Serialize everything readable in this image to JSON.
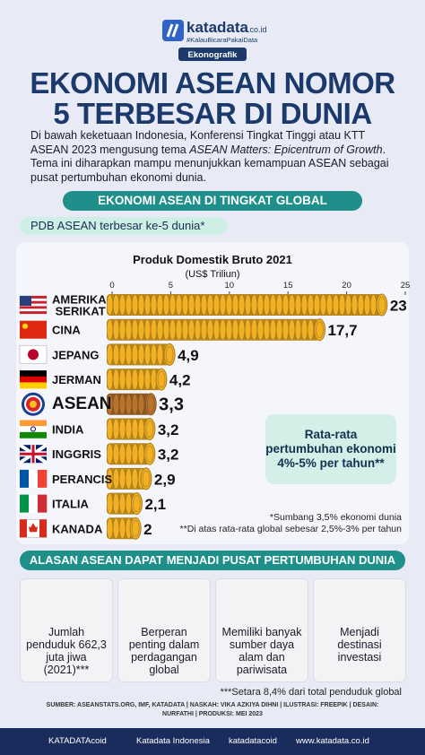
{
  "header": {
    "brand": "katadata",
    "brand_suffix": ".co.id",
    "tagline": "#KalauBicaraPakaiData",
    "label": "Ekonografik"
  },
  "title": [
    "EKONOMI ASEAN NOMOR",
    "5 TERBESAR DI DUNIA"
  ],
  "intro": [
    "Di bawah keketuaan Indonesia, Konferensi Tingkat Tinggi atau KTT ASEAN 2023 mengusung tema ",
    "ASEAN Matters: Epicentrum of Growth",
    ". Tema ini diharapkan mampu menunjukkan kemampuan ASEAN sebagai pusat pertumbuhan ekonomi dunia."
  ],
  "section1": "EKONOMI ASEAN DI TINGKAT GLOBAL",
  "subsection": "PDB ASEAN terbesar ke-5 dunia*",
  "chart_data": {
    "type": "bar",
    "orientation": "horizontal",
    "title": "Produk Domestik Bruto 2021",
    "subtitle": "(US$ Triliun)",
    "categories": [
      "AMERIKA SERIKAT",
      "CINA",
      "JEPANG",
      "JERMAN",
      "ASEAN",
      "INDIA",
      "INGGRIS",
      "PERANCIS",
      "ITALIA",
      "KANADA"
    ],
    "values": [
      23,
      17.7,
      4.9,
      4.2,
      3.3,
      3.2,
      3.2,
      2.9,
      2.1,
      2
    ],
    "value_labels": [
      "23",
      "17,7",
      "4,9",
      "4,2",
      "3,3",
      "3,2",
      "3,2",
      "2,9",
      "2,1",
      "2"
    ],
    "colors": [
      "#f2b124",
      "#f2b124",
      "#f2b124",
      "#f2b124",
      "#b8742c",
      "#f2b124",
      "#f2b124",
      "#f2b124",
      "#f2b124",
      "#f2b124"
    ],
    "xlim": [
      0,
      25
    ],
    "xticks": [
      0,
      5,
      10,
      15,
      20,
      25
    ]
  },
  "callout": "Rata-rata pertumbuhan ekonomi 4%-5% per tahun**",
  "footnotes": [
    "*Sumbang 3,5% ekonomi dunia",
    "**Di atas rata-rata global sebesar 2,5%-3% per tahun"
  ],
  "section2": "ALASAN ASEAN DAPAT MENJADI PUSAT PERTUMBUHAN DUNIA",
  "reasons": [
    "Jumlah penduduk 662,3 juta jiwa (2021)***",
    "Berperan penting dalam perdagangan global",
    "Memiliki banyak sumber daya alam dan pariwisata",
    "Menjadi destinasi investasi"
  ],
  "footnote3": "***Setara 8,4% dari total penduduk global",
  "credits": "SUMBER: ASEANSTATS.ORG, IMF, KATADATA | NASKAH: VIKA AZKIYA DIHNI | ILUSTRASI: FREEPIK | DESAIN: NURFATHI | PRODUKSI: MEI 2023",
  "footer": [
    "KATADATAcoid",
    "Katadata Indonesia",
    "katadatacoid",
    "www.katadata.co.id"
  ]
}
